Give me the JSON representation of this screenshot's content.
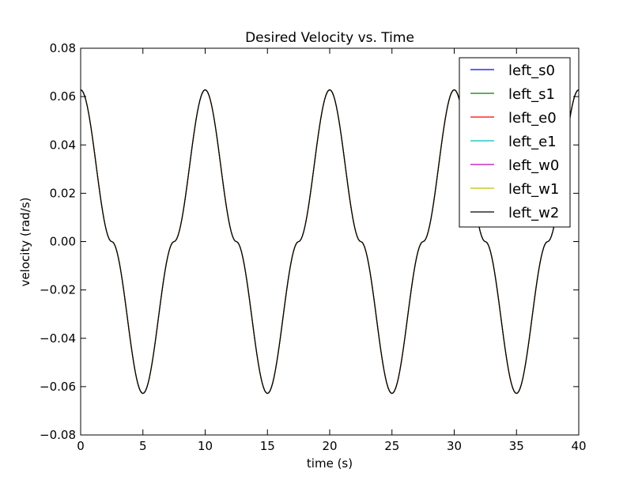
{
  "chart_data": {
    "type": "line",
    "title": "Desired Velocity vs. Time",
    "xlabel": "time (s)",
    "ylabel": "velocity (rad/s)",
    "xlim": [
      0,
      40
    ],
    "ylim": [
      -0.08,
      0.08
    ],
    "xticks": [
      0,
      5,
      10,
      15,
      20,
      25,
      30,
      35,
      40
    ],
    "xtick_labels": [
      "0",
      "5",
      "10",
      "15",
      "20",
      "25",
      "30",
      "35",
      "40"
    ],
    "yticks": [
      -0.08,
      -0.06,
      -0.04,
      -0.02,
      0.0,
      0.02,
      0.04,
      0.06,
      0.08
    ],
    "ytick_labels": [
      "−0.08",
      "−0.06",
      "−0.04",
      "−0.02",
      "0.00",
      "0.02",
      "0.04",
      "0.06",
      "0.08"
    ],
    "grid": false,
    "legend_position": "top-right",
    "x": [
      0,
      2.5,
      5,
      7.5,
      10,
      12.5,
      15,
      17.5,
      20,
      22.5,
      25,
      27.5,
      30,
      32.5,
      35,
      37.5,
      40
    ],
    "series": [
      {
        "name": "left_s0",
        "color": "#0000ff",
        "values": [
          0.0628,
          0,
          -0.0628,
          0,
          0.0628,
          0,
          -0.0628,
          0,
          0.0628,
          0,
          -0.0628,
          0,
          0.0628,
          0,
          -0.0628,
          0,
          0.0628
        ]
      },
      {
        "name": "left_s1",
        "color": "#008000",
        "values": [
          0.0628,
          0,
          -0.0628,
          0,
          0.0628,
          0,
          -0.0628,
          0,
          0.0628,
          0,
          -0.0628,
          0,
          0.0628,
          0,
          -0.0628,
          0,
          0.0628
        ]
      },
      {
        "name": "left_e0",
        "color": "#ff0000",
        "values": [
          0.0628,
          0,
          -0.0628,
          0,
          0.0628,
          0,
          -0.0628,
          0,
          0.0628,
          0,
          -0.0628,
          0,
          0.0628,
          0,
          -0.0628,
          0,
          0.0628
        ]
      },
      {
        "name": "left_e1",
        "color": "#00bfbf",
        "values": [
          0.0628,
          0,
          -0.0628,
          0,
          0.0628,
          0,
          -0.0628,
          0,
          0.0628,
          0,
          -0.0628,
          0,
          0.0628,
          0,
          -0.0628,
          0,
          0.0628
        ]
      },
      {
        "name": "left_w0",
        "color": "#bf00bf",
        "values": [
          0.0628,
          0,
          -0.0628,
          0,
          0.0628,
          0,
          -0.0628,
          0,
          0.0628,
          0,
          -0.0628,
          0,
          0.0628,
          0,
          -0.0628,
          0,
          0.0628
        ]
      },
      {
        "name": "left_w1",
        "color": "#bfbf00",
        "values": [
          0.0628,
          0,
          -0.0628,
          0,
          0.0628,
          0,
          -0.0628,
          0,
          0.0628,
          0,
          -0.0628,
          0,
          0.0628,
          0,
          -0.0628,
          0,
          0.0628
        ]
      },
      {
        "name": "left_w2",
        "color": "#000000",
        "values": [
          0.0628,
          0,
          -0.0628,
          0,
          0.0628,
          0,
          -0.0628,
          0,
          0.0628,
          0,
          -0.0628,
          0,
          0.0628,
          0,
          -0.0628,
          0,
          0.0628
        ]
      }
    ]
  }
}
